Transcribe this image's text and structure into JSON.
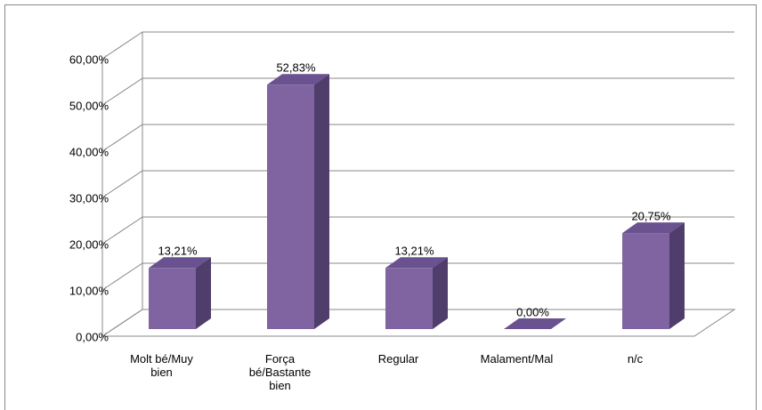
{
  "chart_data": {
    "type": "bar3d",
    "categories": [
      "Molt bé/Muy bien",
      "Força bé/Bastante bien",
      "Regular",
      "Malament/Mal",
      "n/c"
    ],
    "values": [
      13.21,
      52.83,
      13.21,
      0,
      20.75
    ],
    "value_labels": [
      "13,21%",
      "52,83%",
      "13,21%",
      "0,00%",
      "20,75%"
    ],
    "color": "#8064a2",
    "ylim": [
      0,
      60
    ],
    "yticks": [
      {
        "value": 0,
        "label": "0,00%"
      },
      {
        "value": 10,
        "label": "10,00%"
      },
      {
        "value": 20,
        "label": "20,00%"
      },
      {
        "value": 30,
        "label": "30,00%"
      },
      {
        "value": 40,
        "label": "40,00%"
      },
      {
        "value": 50,
        "label": "50,00%"
      },
      {
        "value": 60,
        "label": "60,00%"
      }
    ],
    "grid": true
  }
}
